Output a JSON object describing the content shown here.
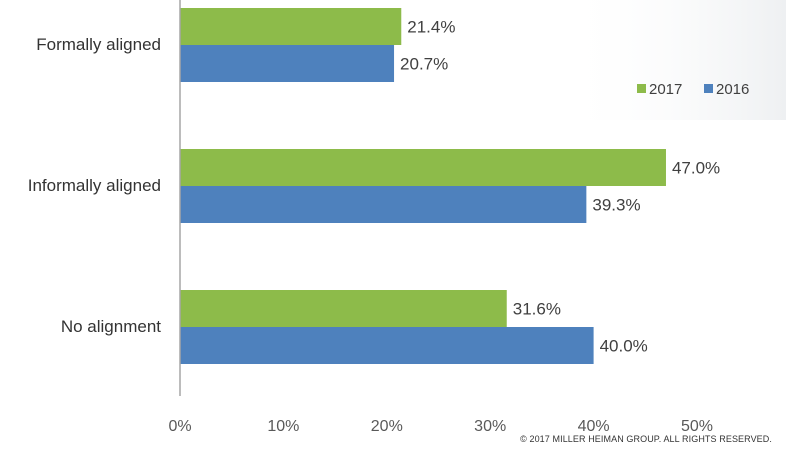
{
  "chart_data": {
    "type": "bar",
    "orientation": "horizontal",
    "categories": [
      "Formally aligned",
      "Informally aligned",
      "No alignment"
    ],
    "series": [
      {
        "name": "2017",
        "color": "#8dbb4a",
        "values": [
          21.4,
          47.0,
          31.6
        ],
        "labels": [
          "21.4%",
          "47.0%",
          "31.6%"
        ]
      },
      {
        "name": "2016",
        "color": "#4e81bd",
        "values": [
          20.7,
          39.3,
          40.0
        ],
        "labels": [
          "20.7%",
          "39.3%",
          "40.0%"
        ]
      }
    ],
    "xlim": [
      0,
      50
    ],
    "xticks": [
      0,
      10,
      20,
      30,
      40,
      50
    ],
    "xtick_labels": [
      "0%",
      "10%",
      "20%",
      "30%",
      "40%",
      "50%"
    ],
    "legend_position": "top-right",
    "grid": false
  },
  "footer": {
    "copyright": "© 2017 MILLER HEIMAN GROUP. ALL RIGHTS RESERVED."
  }
}
